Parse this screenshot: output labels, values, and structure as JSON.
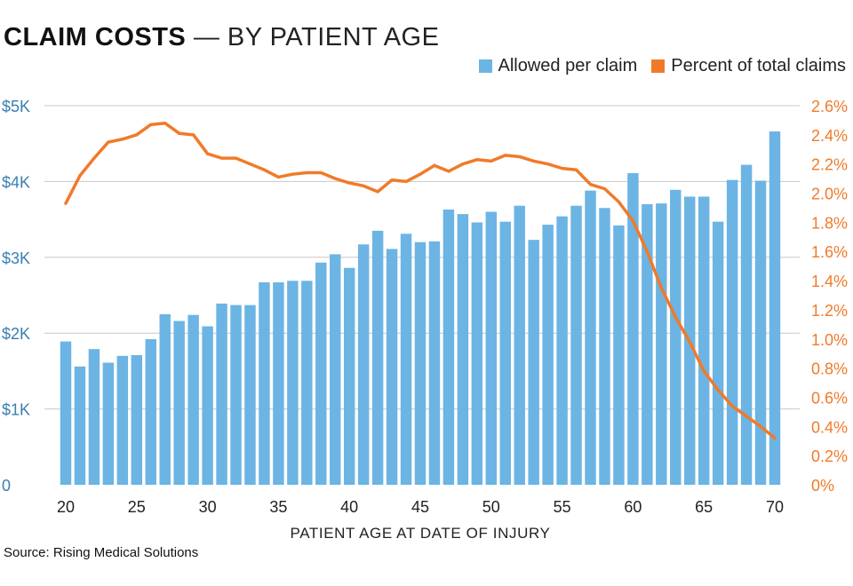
{
  "title": {
    "bold": "CLAIM COSTS",
    "rest": " — BY PATIENT AGE"
  },
  "source": "Source: Rising Medical Solutions",
  "colors": {
    "bar": "#6cb4e4",
    "line": "#f07a2a",
    "left_axis_text": "#3a7fb0",
    "grid": "#c8c8c8"
  },
  "chart_data": {
    "type": "bar",
    "xlabel": "PATIENT AGE AT DATE OF INJURY",
    "x_ticks": [
      20,
      25,
      30,
      35,
      40,
      45,
      50,
      55,
      60,
      65,
      70
    ],
    "left_axis": {
      "ticks": [
        "0",
        "$1K",
        "$2K",
        "$3K",
        "$4K",
        "$5K"
      ],
      "range": [
        0,
        5000
      ]
    },
    "right_axis": {
      "ticks": [
        "0%",
        "0.2%",
        "0.4%",
        "0.6%",
        "0.8%",
        "1.0%",
        "1.2%",
        "1.4%",
        "1.6%",
        "1.8%",
        "2.0%",
        "2.2%",
        "2.4%",
        "2.6%"
      ],
      "range": [
        0,
        2.6
      ]
    },
    "x": [
      20,
      21,
      22,
      23,
      24,
      25,
      26,
      27,
      28,
      29,
      30,
      31,
      32,
      33,
      34,
      35,
      36,
      37,
      38,
      39,
      40,
      41,
      42,
      43,
      44,
      45,
      46,
      47,
      48,
      49,
      50,
      51,
      52,
      53,
      54,
      55,
      56,
      57,
      58,
      59,
      60,
      61,
      62,
      63,
      64,
      65,
      66,
      67,
      68,
      69,
      70
    ],
    "series": [
      {
        "name": "Allowed per claim",
        "kind": "bar",
        "axis": "left",
        "values": [
          1890,
          1560,
          1790,
          1610,
          1700,
          1710,
          1920,
          2250,
          2160,
          2240,
          2090,
          2390,
          2370,
          2370,
          2670,
          2670,
          2690,
          2690,
          2930,
          3040,
          2860,
          3170,
          3350,
          3110,
          3310,
          3200,
          3210,
          3630,
          3570,
          3460,
          3600,
          3470,
          3680,
          3230,
          3430,
          3540,
          3680,
          3880,
          3650,
          3420,
          4110,
          3700,
          3710,
          3890,
          3800,
          3800,
          3470,
          4020,
          4220,
          4010,
          4660
        ]
      },
      {
        "name": "Percent of total claims",
        "kind": "line",
        "axis": "right",
        "values": [
          1.93,
          2.12,
          2.24,
          2.35,
          2.37,
          2.4,
          2.47,
          2.48,
          2.41,
          2.4,
          2.27,
          2.24,
          2.24,
          2.2,
          2.16,
          2.11,
          2.13,
          2.14,
          2.14,
          2.1,
          2.07,
          2.05,
          2.01,
          2.09,
          2.08,
          2.13,
          2.19,
          2.15,
          2.2,
          2.23,
          2.22,
          2.26,
          2.25,
          2.22,
          2.2,
          2.17,
          2.16,
          2.06,
          2.03,
          1.94,
          1.81,
          1.6,
          1.35,
          1.15,
          0.98,
          0.78,
          0.65,
          0.54,
          0.47,
          0.4,
          0.32
        ]
      }
    ]
  }
}
